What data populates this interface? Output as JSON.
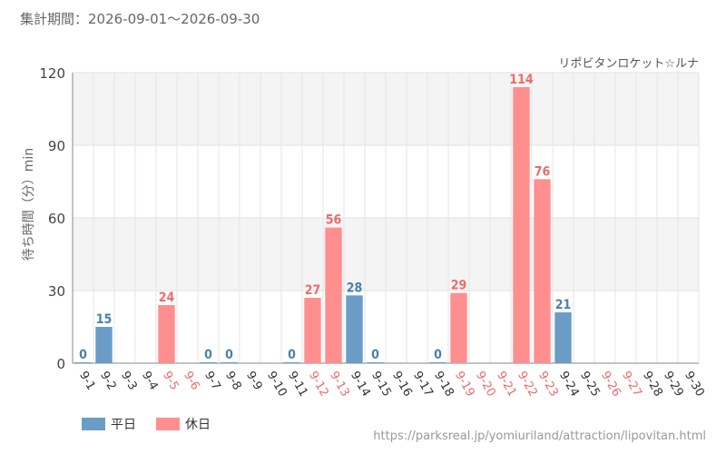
{
  "header": {
    "period_label": "集計期間：2026-09-01～2026-09-30"
  },
  "attraction_name": "リポビタンロケット☆ルナ",
  "chart_data": {
    "type": "bar",
    "ylabel": "待ち時間（分）min",
    "ylim": [
      0,
      120
    ],
    "yticks": [
      0,
      30,
      60,
      90,
      120
    ],
    "categories": [
      "9-1",
      "9-2",
      "9-3",
      "9-4",
      "9-5",
      "9-6",
      "9-7",
      "9-8",
      "9-9",
      "9-10",
      "9-11",
      "9-12",
      "9-13",
      "9-14",
      "9-15",
      "9-16",
      "9-17",
      "9-18",
      "9-19",
      "9-20",
      "9-21",
      "9-22",
      "9-23",
      "9-24",
      "9-25",
      "9-26",
      "9-27",
      "9-28",
      "9-29",
      "9-30"
    ],
    "holiday": [
      false,
      false,
      false,
      false,
      true,
      true,
      false,
      false,
      false,
      false,
      false,
      true,
      true,
      false,
      false,
      false,
      false,
      false,
      true,
      true,
      true,
      true,
      true,
      false,
      false,
      true,
      true,
      false,
      false,
      false
    ],
    "values": [
      0,
      15,
      null,
      null,
      24,
      null,
      0,
      0,
      null,
      null,
      0,
      27,
      56,
      28,
      0,
      null,
      null,
      0,
      29,
      null,
      null,
      114,
      76,
      21,
      null,
      null,
      null,
      null,
      null,
      null
    ],
    "legend": [
      {
        "label": "平日",
        "color": "#6a9cc6"
      },
      {
        "label": "休日",
        "color": "#ff8f8f"
      }
    ],
    "colors": {
      "weekday": "#6a9cc6",
      "holiday": "#ff8f8f",
      "weekday_text": "#4b7fad",
      "holiday_text": "#f06a6a"
    },
    "grid": true,
    "legend_position": "bottom-left"
  },
  "footer": {
    "url": "https://parksreal.jp/yomiuriland/attraction/lipovitan.html"
  }
}
